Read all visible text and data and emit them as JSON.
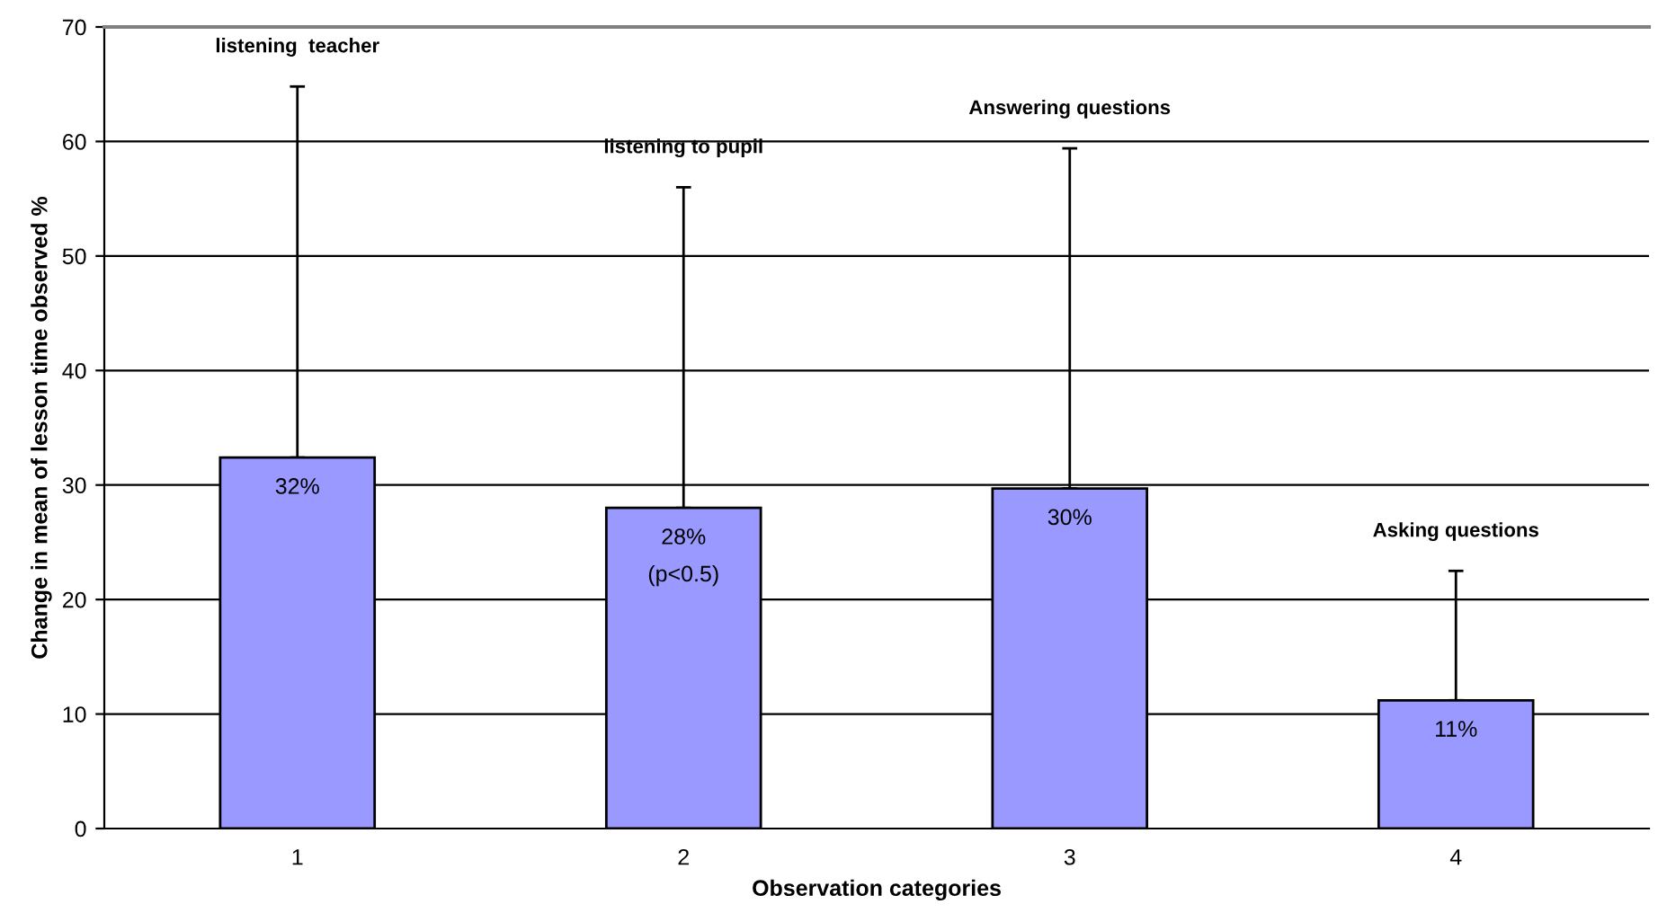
{
  "chart_data": {
    "type": "bar",
    "xlabel": "Observation categories",
    "ylabel": "Change in mean of lesson time observed %",
    "categories": [
      "1",
      "2",
      "3",
      "4"
    ],
    "values": [
      32.4,
      28,
      29.7,
      11.2
    ],
    "value_labels": [
      "32%",
      "28%\n(p<0.5)",
      "30%",
      "11%"
    ],
    "errors": [
      [
        32.4,
        64.8
      ],
      [
        28,
        56
      ],
      [
        29.7,
        59.4
      ],
      [
        11.2,
        22.5
      ]
    ],
    "color": "#9999ff",
    "ylim": [
      0,
      70
    ],
    "yticks": [
      0,
      10,
      20,
      30,
      40,
      50,
      60,
      70
    ],
    "grid": "y",
    "annotations": [
      "listening  teacher",
      "listening to pupil",
      "Answering questions",
      "Asking questions"
    ]
  }
}
